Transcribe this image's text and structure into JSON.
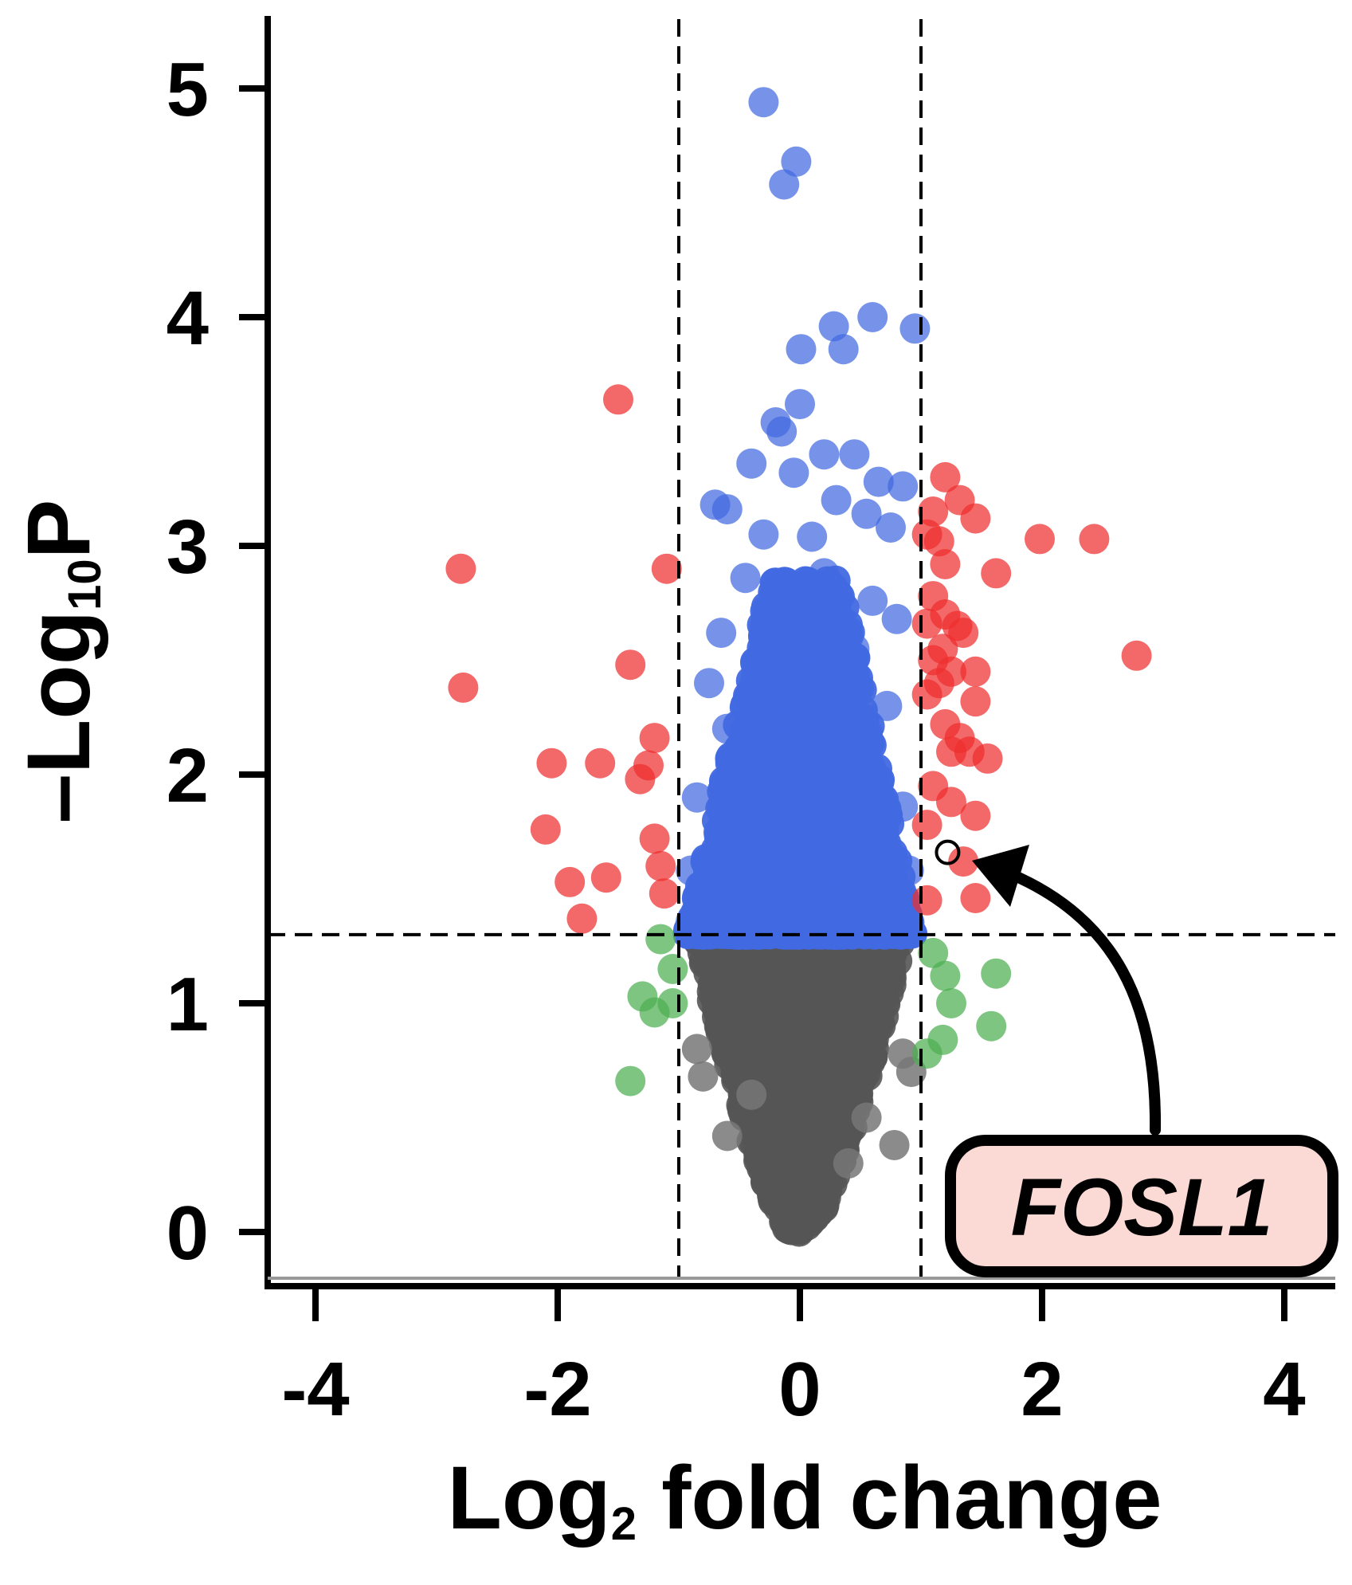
{
  "chart_data": {
    "type": "scatter",
    "title": "",
    "xlabel": {
      "main": "Log",
      "sub": "2",
      "rest": " fold change"
    },
    "ylabel": {
      "main": "–Log",
      "sub": "10",
      "rest": "P"
    },
    "xlim": [
      -4.3,
      4.3
    ],
    "ylim": [
      -0.2,
      5.3
    ],
    "xticks": [
      -4,
      -2,
      0,
      2,
      4
    ],
    "xtick_labels": [
      "-4",
      "-2",
      "0",
      "2",
      "4"
    ],
    "yticks": [
      0,
      1,
      2,
      3,
      4,
      5
    ],
    "ytick_labels": [
      "0",
      "1",
      "2",
      "3",
      "4",
      "5"
    ],
    "thresholds": {
      "log2fc": [
        -1,
        1
      ],
      "neg_log10_p": 1.3
    },
    "grid": false,
    "legend": "none",
    "colors": {
      "ns": "#555555",
      "log2fc_only": "#4caf50",
      "p_only": "#4169e1",
      "p_and_log2fc": "#ee2e2e",
      "annotation_box": "#fbd9d5"
    },
    "series": [
      {
        "color_key": "p_only",
        "points": [
          [
            -0.3,
            4.94
          ],
          [
            -0.03,
            4.68
          ],
          [
            -0.13,
            4.58
          ],
          [
            0.28,
            3.96
          ],
          [
            0.6,
            4.0
          ],
          [
            0.95,
            3.95
          ],
          [
            0.01,
            3.86
          ],
          [
            0.36,
            3.86
          ],
          [
            0.0,
            3.62
          ],
          [
            -0.2,
            3.54
          ],
          [
            -0.15,
            3.5
          ],
          [
            -0.4,
            3.36
          ],
          [
            -0.05,
            3.32
          ],
          [
            0.2,
            3.4
          ],
          [
            0.45,
            3.4
          ],
          [
            0.65,
            3.28
          ],
          [
            0.85,
            3.26
          ],
          [
            -0.7,
            3.18
          ],
          [
            -0.6,
            3.16
          ],
          [
            0.3,
            3.2
          ],
          [
            0.55,
            3.14
          ],
          [
            0.75,
            3.08
          ],
          [
            -0.3,
            3.05
          ],
          [
            0.1,
            3.04
          ],
          [
            -0.45,
            2.86
          ],
          [
            0.2,
            2.88
          ],
          [
            0.6,
            2.76
          ],
          [
            -0.65,
            2.62
          ],
          [
            0.8,
            2.68
          ],
          [
            -0.75,
            2.4
          ],
          [
            0.4,
            2.6
          ],
          [
            -0.2,
            2.7
          ],
          [
            0.0,
            2.75
          ],
          [
            -0.6,
            2.2
          ],
          [
            0.72,
            2.3
          ],
          [
            -0.85,
            1.9
          ],
          [
            0.85,
            1.86
          ],
          [
            -0.55,
            2.02
          ],
          [
            0.5,
            2.1
          ],
          [
            -0.9,
            1.58
          ],
          [
            0.9,
            1.58
          ],
          [
            -0.8,
            1.45
          ],
          [
            0.82,
            1.42
          ],
          [
            -0.9,
            1.36
          ],
          [
            0.9,
            1.34
          ],
          [
            -0.3,
            1.6
          ],
          [
            0.3,
            1.7
          ],
          [
            0.0,
            1.95
          ],
          [
            -0.5,
            1.75
          ],
          [
            0.6,
            1.85
          ],
          [
            0.2,
            2.35
          ],
          [
            -0.35,
            2.25
          ],
          [
            0.45,
            2.55
          ],
          [
            -0.15,
            2.5
          ],
          [
            0.1,
            2.2
          ],
          [
            -0.7,
            1.65
          ],
          [
            0.7,
            1.6
          ],
          [
            0.15,
            1.5
          ],
          [
            -0.15,
            1.45
          ],
          [
            0.55,
            1.45
          ]
        ]
      },
      {
        "color_key": "p_and_log2fc",
        "points": [
          [
            -1.5,
            3.64
          ],
          [
            -2.8,
            2.9
          ],
          [
            -1.1,
            2.9
          ],
          [
            -2.78,
            2.38
          ],
          [
            -1.4,
            2.48
          ],
          [
            -2.05,
            2.05
          ],
          [
            -1.65,
            2.05
          ],
          [
            -1.2,
            2.16
          ],
          [
            -1.25,
            2.04
          ],
          [
            -1.32,
            1.98
          ],
          [
            -2.1,
            1.76
          ],
          [
            -1.2,
            1.72
          ],
          [
            -1.9,
            1.53
          ],
          [
            -1.6,
            1.55
          ],
          [
            -1.15,
            1.6
          ],
          [
            -1.12,
            1.48
          ],
          [
            -1.8,
            1.37
          ],
          [
            1.2,
            3.3
          ],
          [
            1.32,
            3.2
          ],
          [
            1.45,
            3.12
          ],
          [
            1.1,
            3.15
          ],
          [
            1.05,
            3.05
          ],
          [
            1.15,
            3.02
          ],
          [
            1.2,
            2.92
          ],
          [
            1.62,
            2.88
          ],
          [
            1.98,
            3.03
          ],
          [
            2.43,
            3.03
          ],
          [
            2.78,
            2.52
          ],
          [
            1.1,
            2.78
          ],
          [
            1.2,
            2.7
          ],
          [
            1.05,
            2.66
          ],
          [
            1.3,
            2.65
          ],
          [
            1.35,
            2.62
          ],
          [
            1.18,
            2.55
          ],
          [
            1.1,
            2.5
          ],
          [
            1.25,
            2.45
          ],
          [
            1.45,
            2.45
          ],
          [
            1.15,
            2.4
          ],
          [
            1.05,
            2.35
          ],
          [
            1.45,
            2.32
          ],
          [
            1.2,
            2.22
          ],
          [
            1.32,
            2.16
          ],
          [
            1.25,
            2.1
          ],
          [
            1.4,
            2.1
          ],
          [
            1.55,
            2.07
          ],
          [
            1.1,
            1.95
          ],
          [
            1.25,
            1.88
          ],
          [
            1.45,
            1.82
          ],
          [
            1.05,
            1.78
          ],
          [
            1.35,
            1.62
          ],
          [
            1.45,
            1.46
          ],
          [
            1.05,
            1.45
          ]
        ]
      },
      {
        "color_key": "log2fc_only",
        "points": [
          [
            -1.15,
            1.28
          ],
          [
            -1.05,
            1.15
          ],
          [
            -1.3,
            1.03
          ],
          [
            -1.05,
            1.0
          ],
          [
            -1.2,
            0.96
          ],
          [
            -1.4,
            0.66
          ],
          [
            1.1,
            1.22
          ],
          [
            1.2,
            1.12
          ],
          [
            1.62,
            1.13
          ],
          [
            1.25,
            1.0
          ],
          [
            1.58,
            0.9
          ],
          [
            1.18,
            0.84
          ],
          [
            1.05,
            0.78
          ]
        ]
      }
    ],
    "annotations": [
      {
        "label": "FOSL1",
        "x": 1.22,
        "y": 1.66
      }
    ]
  }
}
